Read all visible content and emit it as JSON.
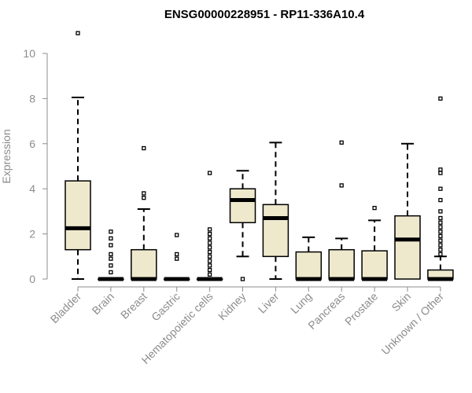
{
  "chart_data": {
    "type": "boxplot",
    "title": "ENSG00000228951 - RP11-336A10.4",
    "xlabel": "",
    "ylabel": "Expression",
    "ylim": [
      0,
      10.5
    ],
    "yticks": [
      0,
      2,
      4,
      6,
      8,
      10
    ],
    "box_fill": "#eee8cd",
    "box_stroke": "#000000",
    "axis_color": "#8c8c8c",
    "categories": [
      "Bladder",
      "Brain",
      "Breast",
      "Gastric",
      "Hematopoietic cells",
      "Kidney",
      "Liver",
      "Lung",
      "Pancreas",
      "Prostate",
      "Skin",
      "Unknown / Other"
    ],
    "boxes": [
      {
        "name": "Bladder",
        "q1": 1.3,
        "median": 2.25,
        "q3": 4.35,
        "whisker_low": 0,
        "whisker_high": 8.05,
        "outliers": [
          10.9
        ]
      },
      {
        "name": "Brain",
        "q1": 0,
        "median": 0,
        "q3": 0,
        "whisker_low": 0,
        "whisker_high": 0,
        "outliers": [
          0.3,
          0.6,
          0.9,
          1.1,
          1.5,
          1.8,
          2.1
        ]
      },
      {
        "name": "Breast",
        "q1": 0,
        "median": 0,
        "q3": 1.3,
        "whisker_low": 0,
        "whisker_high": 3.1,
        "outliers": [
          3.6,
          3.8,
          5.8
        ]
      },
      {
        "name": "Gastric",
        "q1": 0,
        "median": 0,
        "q3": 0,
        "whisker_low": 0,
        "whisker_high": 0,
        "outliers": [
          0.9,
          1.1,
          1.95
        ]
      },
      {
        "name": "Hematopoietic cells",
        "q1": 0,
        "median": 0,
        "q3": 0,
        "whisker_low": 0,
        "whisker_high": 0,
        "outliers": [
          0.2,
          0.4,
          0.6,
          0.8,
          1.0,
          1.2,
          1.4,
          1.6,
          1.8,
          2.0,
          2.2,
          4.7
        ]
      },
      {
        "name": "Kidney",
        "q1": 2.5,
        "median": 3.5,
        "q3": 4.0,
        "whisker_low": 1.0,
        "whisker_high": 4.8,
        "outliers": [
          0
        ]
      },
      {
        "name": "Liver",
        "q1": 1.0,
        "median": 2.7,
        "q3": 3.3,
        "whisker_low": 0,
        "whisker_high": 6.05,
        "outliers": []
      },
      {
        "name": "Lung",
        "q1": 0,
        "median": 0,
        "q3": 1.2,
        "whisker_low": 0,
        "whisker_high": 1.85,
        "outliers": []
      },
      {
        "name": "Pancreas",
        "q1": 0,
        "median": 0,
        "q3": 1.3,
        "whisker_low": 0,
        "whisker_high": 1.8,
        "outliers": [
          4.15,
          6.05
        ]
      },
      {
        "name": "Prostate",
        "q1": 0,
        "median": 0,
        "q3": 1.25,
        "whisker_low": 0,
        "whisker_high": 2.6,
        "outliers": [
          3.15
        ]
      },
      {
        "name": "Skin",
        "q1": 0,
        "median": 1.75,
        "q3": 2.8,
        "whisker_low": 0,
        "whisker_high": 6.0,
        "outliers": []
      },
      {
        "name": "Unknown / Other",
        "q1": 0,
        "median": 0,
        "q3": 0.4,
        "whisker_low": 0,
        "whisker_high": 1.0,
        "outliers": [
          1.1,
          1.3,
          1.5,
          1.7,
          1.9,
          2.1,
          2.3,
          2.5,
          2.7,
          3.0,
          3.5,
          4.0,
          4.7,
          4.85,
          8.0
        ]
      }
    ]
  }
}
